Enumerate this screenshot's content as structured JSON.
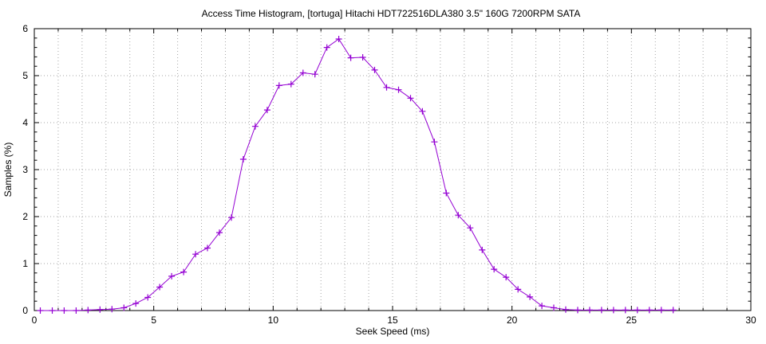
{
  "title": "Access Time Histogram, [tortuga] Hitachi HDT722516DLA380 3.5\" 160G 7200RPM SATA",
  "colors": {
    "series": "#9400d3",
    "grid": "#a6a6a6",
    "axis": "#000000",
    "background": "#ffffff",
    "text": "#000000"
  },
  "chart_data": {
    "type": "line",
    "title": "Access Time Histogram, [tortuga] Hitachi HDT722516DLA380 3.5\" 160G 7200RPM SATA",
    "xlabel": "Seek Speed (ms)",
    "ylabel": "Samples (%)",
    "xlim": [
      0,
      30
    ],
    "ylim": [
      0,
      6
    ],
    "x_major_ticks": [
      0,
      5,
      10,
      15,
      20,
      25,
      30
    ],
    "x_minor_step": 1,
    "y_major_ticks": [
      0,
      1,
      2,
      3,
      4,
      5,
      6
    ],
    "y_minor_step": 0.2,
    "grid": {
      "vertical_every_ms": 1,
      "horizontal_every_pct": 1,
      "style": "dotted gray"
    },
    "legend_position": "none",
    "series": [
      {
        "name": "samples",
        "color": "#9400d3",
        "marker": "plus",
        "x": [
          0.25,
          0.75,
          1.25,
          1.75,
          2.25,
          2.75,
          3.25,
          3.75,
          4.25,
          4.75,
          5.25,
          5.75,
          6.25,
          6.75,
          7.25,
          7.75,
          8.25,
          8.75,
          9.25,
          9.75,
          10.25,
          10.75,
          11.25,
          11.75,
          12.25,
          12.75,
          13.25,
          13.75,
          14.25,
          14.75,
          15.25,
          15.75,
          16.25,
          16.75,
          17.25,
          17.75,
          18.25,
          18.75,
          19.25,
          19.75,
          20.25,
          20.75,
          21.25,
          21.75,
          22.25,
          22.75,
          23.25,
          23.75,
          24.25,
          24.75,
          25.25,
          25.75,
          26.25,
          26.75
        ],
        "y": [
          0,
          0,
          0,
          0,
          0.01,
          0.02,
          0.03,
          0.06,
          0.15,
          0.28,
          0.5,
          0.73,
          0.82,
          1.2,
          1.33,
          1.66,
          1.98,
          3.22,
          3.92,
          4.27,
          4.79,
          4.82,
          5.06,
          5.03,
          5.6,
          5.78,
          5.38,
          5.39,
          5.12,
          4.75,
          4.7,
          4.52,
          4.24,
          3.59,
          2.5,
          2.03,
          1.76,
          1.29,
          0.88,
          0.71,
          0.45,
          0.29,
          0.1,
          0.06,
          0.02,
          0.01,
          0.01,
          0.01,
          0.01,
          0.01,
          0.01,
          0.01,
          0.01,
          0.01
        ]
      }
    ]
  }
}
